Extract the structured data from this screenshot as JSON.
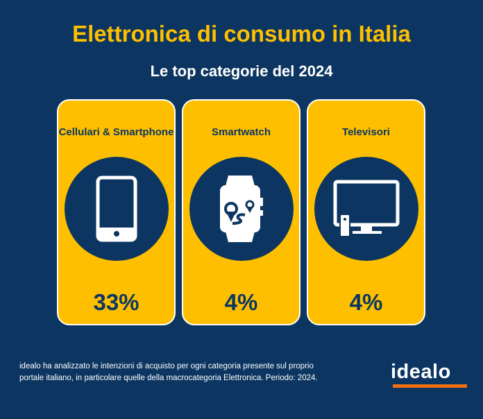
{
  "header": {
    "title": "Elettronica di consumo in Italia",
    "subtitle": "Le top categorie del 2024"
  },
  "cards": [
    {
      "label": "Cellulari & Smartphone",
      "value": "33%",
      "icon": "smartphone-icon"
    },
    {
      "label": "Smartwatch",
      "value": "4%",
      "icon": "smartwatch-icon"
    },
    {
      "label": "Televisori",
      "value": "4%",
      "icon": "television-icon"
    }
  ],
  "footer": {
    "note": "idealo ha analizzato le intenzioni di acquisto per ogni categoria presente sul proprio portale italiano, in particolare quelle della macrocategoria Elettronica. Periodo: 2024.",
    "logo": "idealo"
  },
  "colors": {
    "background": "#0c3661",
    "accent": "#fdbf00",
    "logo_bar": "#f36f12"
  }
}
